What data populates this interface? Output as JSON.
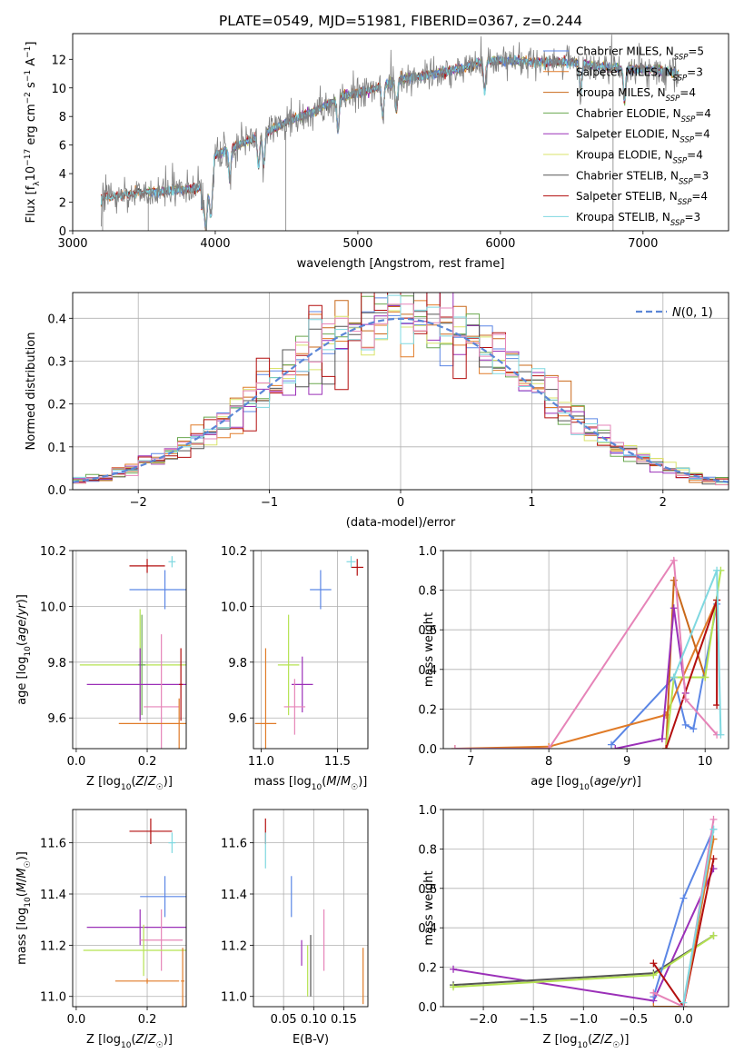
{
  "title": "PLATE=0549, MJD=51981, FIBERID=0367, z=0.244",
  "model_colors": {
    "Chabrier MILES": "#5b86e5",
    "Salpeter MILES": "#e07b28",
    "Kroupa MILES": "#c9691a",
    "Chabrier ELODIE": "#6aa84f",
    "Salpeter ELODIE": "#9b30b8",
    "Kroupa ELODIE": "#d9e36a",
    "Chabrier STELIB": "#555555",
    "Salpeter STELIB": "#b30f0f",
    "Kroupa STELIB": "#7fd8e0",
    "pink": "#e684b8",
    "lime": "#b5e352",
    "normal": "#5b86d6",
    "data": "#808080"
  },
  "chart_data": [
    {
      "id": "spectrum",
      "type": "line",
      "title": "PLATE=0549, MJD=51981, FIBERID=0367, z=0.244",
      "xlabel": "wavelength [Angstrom, rest frame]",
      "ylabel": "Flux [f_λ 10^-17 erg cm^-2 s^-1 A^-1]",
      "xlim": [
        3000,
        7600
      ],
      "ylim": [
        0,
        13.8
      ],
      "xticks": [
        3000,
        4000,
        5000,
        6000,
        7000
      ],
      "yticks": [
        0,
        2,
        4,
        6,
        8,
        10,
        12
      ],
      "legend_position": "right",
      "legend": [
        {
          "label": "Chabrier MILES, N",
          "sub": "SSP",
          "suffix": "=5",
          "model": "Chabrier MILES"
        },
        {
          "label": "Salpeter MILES, N",
          "sub": "SSP",
          "suffix": "=3",
          "model": "Salpeter MILES"
        },
        {
          "label": "Kroupa MILES, N",
          "sub": "SSP",
          "suffix": "=4",
          "model": "Kroupa MILES"
        },
        {
          "label": "Chabrier ELODIE, N",
          "sub": "SSP",
          "suffix": "=4",
          "model": "Chabrier ELODIE"
        },
        {
          "label": "Salpeter ELODIE, N",
          "sub": "SSP",
          "suffix": "=4",
          "model": "Salpeter ELODIE"
        },
        {
          "label": "Kroupa ELODIE, N",
          "sub": "SSP",
          "suffix": "=4",
          "model": "Kroupa ELODIE"
        },
        {
          "label": "Chabrier STELIB, N",
          "sub": "SSP",
          "suffix": "=3",
          "model": "Chabrier STELIB"
        },
        {
          "label": "Salpeter STELIB, N",
          "sub": "SSP",
          "suffix": "=4",
          "model": "Salpeter STELIB"
        },
        {
          "label": "Kroupa STELIB, N",
          "sub": "SSP",
          "suffix": "=3",
          "model": "Kroupa STELIB"
        }
      ],
      "continuum": [
        [
          3200,
          2.3
        ],
        [
          3500,
          2.7
        ],
        [
          3700,
          2.8
        ],
        [
          3900,
          3.0
        ],
        [
          4000,
          5.3
        ],
        [
          4300,
          6.6
        ],
        [
          4500,
          7.6
        ],
        [
          4700,
          8.4
        ],
        [
          4900,
          9.4
        ],
        [
          5100,
          9.9
        ],
        [
          5300,
          10.6
        ],
        [
          5500,
          10.9
        ],
        [
          5700,
          11.3
        ],
        [
          5900,
          11.9
        ],
        [
          6100,
          11.9
        ],
        [
          6300,
          11.8
        ],
        [
          6500,
          11.8
        ],
        [
          6700,
          11.5
        ],
        [
          6900,
          11.3
        ],
        [
          7100,
          11.3
        ],
        [
          7250,
          11.0
        ]
      ],
      "dips": [
        3934,
        3969,
        4102,
        4304,
        4340,
        4861,
        5175,
        5270,
        5890,
        6563,
        6870
      ],
      "gaps": [
        3460,
        3540,
        4500,
        6790
      ]
    },
    {
      "id": "residual_histogram",
      "type": "histogram",
      "xlabel": "(data-model)/error",
      "ylabel": "Normed distribution",
      "xlim": [
        -2.5,
        2.5
      ],
      "ylim": [
        0,
        0.46
      ],
      "xticks": [
        -2,
        -1,
        0,
        1,
        2
      ],
      "yticks": [
        0,
        0.1,
        0.2,
        0.3,
        0.4
      ],
      "legend_position": "upper right",
      "legend": [
        {
          "label": "N(0, 1)",
          "style": "dashed"
        }
      ],
      "bin_width": 0.1,
      "series_models": [
        "Chabrier MILES",
        "Salpeter MILES",
        "Kroupa MILES",
        "Chabrier ELODIE",
        "Salpeter ELODIE",
        "Kroupa ELODIE",
        "Chabrier STELIB",
        "Salpeter STELIB",
        "Kroupa STELIB",
        "pink"
      ]
    },
    {
      "id": "age_vs_Z",
      "type": "scatter",
      "xlabel": "Z [log10(Z/Z☉)]",
      "ylabel": "age [log10(age/yr)]",
      "xlim": [
        -0.01,
        0.31
      ],
      "ylim": [
        9.49,
        10.2
      ],
      "xticks": [
        0.0,
        0.2
      ],
      "yticks": [
        9.6,
        9.8,
        10.0,
        10.2
      ],
      "points": [
        {
          "model": "Salpeter STELIB",
          "x": 0.2,
          "y": 10.145,
          "xerr": 0.05,
          "yerr": 0.025
        },
        {
          "model": "Kroupa STELIB",
          "x": 0.27,
          "y": 10.16,
          "xerr": 0.01,
          "yerr": 0.02
        },
        {
          "model": "Chabrier MILES",
          "x": 0.25,
          "y": 10.06,
          "xerr": 0.1,
          "yerr": 0.07
        },
        {
          "model": "lime",
          "x": 0.18,
          "y": 9.79,
          "xerr": 0.17,
          "yerr": 0.2
        },
        {
          "model": "Chabrier ELODIE",
          "x": 0.185,
          "y": 9.79,
          "xerr": 0.01,
          "yerr": 0.18
        },
        {
          "model": "Salpeter ELODIE",
          "x": 0.18,
          "y": 9.72,
          "xerr": 0.15,
          "yerr": 0.13
        },
        {
          "model": "pink",
          "x": 0.24,
          "y": 9.64,
          "xerr": 0.05,
          "yerr": 0.26
        },
        {
          "model": "Salpeter MILES",
          "x": 0.29,
          "y": 9.58,
          "xerr": 0.17,
          "yerr": 0.09
        },
        {
          "model": "Salpeter STELIB",
          "x": 0.295,
          "y": 9.72,
          "xerr": 0.005,
          "yerr": 0.13
        }
      ]
    },
    {
      "id": "age_vs_mass",
      "type": "scatter",
      "xlabel": "mass [log10(M/M☉)]",
      "ylabel": "",
      "xlim": [
        10.95,
        11.7
      ],
      "ylim": [
        9.49,
        10.2
      ],
      "xticks": [
        11.0,
        11.5
      ],
      "yticks": [
        9.6,
        9.8,
        10.0,
        10.2
      ],
      "points": [
        {
          "model": "Salpeter STELIB",
          "x": 11.63,
          "y": 10.14,
          "xerr": 0.04,
          "yerr": 0.03
        },
        {
          "model": "Kroupa STELIB",
          "x": 11.59,
          "y": 10.16,
          "xerr": 0.03,
          "yerr": 0.02
        },
        {
          "model": "Chabrier MILES",
          "x": 11.39,
          "y": 10.06,
          "xerr": 0.07,
          "yerr": 0.07
        },
        {
          "model": "lime",
          "x": 11.18,
          "y": 9.79,
          "xerr": 0.07,
          "yerr": 0.18
        },
        {
          "model": "Salpeter ELODIE",
          "x": 11.27,
          "y": 9.72,
          "xerr": 0.07,
          "yerr": 0.1
        },
        {
          "model": "pink",
          "x": 11.22,
          "y": 9.64,
          "xerr": 0.07,
          "yerr": 0.1
        },
        {
          "model": "Salpeter MILES",
          "x": 11.03,
          "y": 9.58,
          "xerr": 0.07,
          "yerr": 0.27
        }
      ]
    },
    {
      "id": "weight_vs_age",
      "type": "line",
      "xlabel": "age [log10(age/yr)]",
      "ylabel": "mass weight",
      "xlim": [
        6.65,
        10.3
      ],
      "ylim": [
        0,
        1.0
      ],
      "xticks": [
        7,
        8,
        9,
        10
      ],
      "yticks": [
        0.0,
        0.2,
        0.4,
        0.6,
        0.8,
        1.0
      ],
      "series": [
        {
          "model": "Chabrier MILES",
          "x": [
            8.8,
            9.6,
            9.75,
            9.85,
            10.15
          ],
          "y": [
            0.02,
            0.36,
            0.12,
            0.1,
            0.73
          ]
        },
        {
          "model": "Salpeter MILES",
          "x": [
            6.8,
            8.0,
            9.5,
            10.15
          ],
          "y": [
            0.0,
            0.01,
            0.17,
            0.75
          ]
        },
        {
          "model": "Kroupa MILES",
          "x": [
            9.5,
            9.6,
            10.0
          ],
          "y": [
            0.0,
            0.85,
            0.36
          ]
        },
        {
          "model": "Salpeter ELODIE",
          "x": [
            8.85,
            9.45,
            9.6,
            9.75
          ],
          "y": [
            0.0,
            0.05,
            0.71,
            0.28
          ]
        },
        {
          "model": "lime",
          "x": [
            9.5,
            9.6,
            10.0,
            10.2
          ],
          "y": [
            0.0,
            0.36,
            0.36,
            0.9
          ]
        },
        {
          "model": "Salpeter STELIB",
          "x": [
            9.5,
            10.15,
            10.15
          ],
          "y": [
            0.0,
            0.75,
            0.22
          ]
        },
        {
          "model": "pink",
          "x": [
            6.8,
            8.0,
            9.6,
            9.75,
            10.15
          ],
          "y": [
            0.0,
            0.0,
            0.95,
            0.25,
            0.07
          ]
        },
        {
          "model": "Kroupa STELIB",
          "x": [
            9.6,
            10.15,
            10.2
          ],
          "y": [
            0.36,
            0.9,
            0.07
          ]
        }
      ]
    },
    {
      "id": "mass_vs_Z",
      "type": "scatter",
      "xlabel": "Z [log10(Z/Z☉)]",
      "ylabel": "mass [log10(M/M☉)]",
      "xlim": [
        -0.01,
        0.31
      ],
      "ylim": [
        10.96,
        11.73
      ],
      "xticks": [
        0.0,
        0.2
      ],
      "yticks": [
        11.0,
        11.2,
        11.4,
        11.6
      ],
      "points": [
        {
          "model": "Salpeter STELIB",
          "x": 0.21,
          "y": 11.645,
          "xerr": 0.06,
          "yerr": 0.05
        },
        {
          "model": "Kroupa STELIB",
          "x": 0.27,
          "y": 11.6,
          "xerr": 0.01,
          "yerr": 0.04
        },
        {
          "model": "Chabrier MILES",
          "x": 0.25,
          "y": 11.39,
          "xerr": 0.07,
          "yerr": 0.08
        },
        {
          "model": "Salpeter ELODIE",
          "x": 0.18,
          "y": 11.27,
          "xerr": 0.15,
          "yerr": 0.07
        },
        {
          "model": "pink",
          "x": 0.24,
          "y": 11.22,
          "xerr": 0.06,
          "yerr": 0.12
        },
        {
          "model": "lime",
          "x": 0.19,
          "y": 11.18,
          "xerr": 0.17,
          "yerr": 0.1
        },
        {
          "model": "Salpeter MILES",
          "x": 0.2,
          "y": 11.06,
          "xerr": 0.09,
          "yerr": 0.01
        },
        {
          "model": "Salpeter MILES",
          "x": 0.3,
          "y": 11.06,
          "xerr": 0.005,
          "yerr": 0.13
        }
      ]
    },
    {
      "id": "mass_vs_EBV",
      "type": "scatter",
      "xlabel": "E(B-V)",
      "ylabel": "",
      "xlim": [
        0.0,
        0.19
      ],
      "ylim": [
        10.96,
        11.73
      ],
      "xticks": [
        0.05,
        0.1,
        0.15
      ],
      "yticks": [
        11.0,
        11.2,
        11.4,
        11.6
      ],
      "points": [
        {
          "model": "Salpeter STELIB",
          "x": 0.02,
          "y": 11.645,
          "yerr": 0.05
        },
        {
          "model": "Kroupa STELIB",
          "x": 0.02,
          "y": 11.57,
          "yerr": 0.07
        },
        {
          "model": "Chabrier MILES",
          "x": 0.063,
          "y": 11.39,
          "yerr": 0.08
        },
        {
          "model": "Salpeter ELODIE",
          "x": 0.08,
          "y": 11.17,
          "yerr": 0.05
        },
        {
          "model": "pink",
          "x": 0.117,
          "y": 11.22,
          "yerr": 0.12
        },
        {
          "model": "lime",
          "x": 0.09,
          "y": 11.1,
          "yerr": 0.1
        },
        {
          "model": "Chabrier STELIB",
          "x": 0.095,
          "y": 11.12,
          "yerr": 0.12
        },
        {
          "model": "Salpeter MILES",
          "x": 0.182,
          "y": 11.08,
          "yerr": 0.11
        }
      ]
    },
    {
      "id": "weight_vs_Z",
      "type": "line",
      "xlabel": "Z [log10(Z/Z☉)]",
      "ylabel": "mass weight",
      "xlim": [
        -2.4,
        0.45
      ],
      "ylim": [
        0,
        1.0
      ],
      "xticks": [
        -2.0,
        -1.5,
        -1.0,
        -0.5,
        0.0
      ],
      "yticks": [
        0.0,
        0.2,
        0.4,
        0.6,
        0.8,
        1.0
      ],
      "series": [
        {
          "model": "Salpeter ELODIE",
          "x": [
            -2.3,
            -0.3,
            0.3
          ],
          "y": [
            0.19,
            0.03,
            0.7
          ]
        },
        {
          "model": "Chabrier STELIB",
          "x": [
            -2.3,
            -0.3,
            0.3
          ],
          "y": [
            0.11,
            0.17,
            0.36
          ]
        },
        {
          "model": "lime",
          "x": [
            -2.3,
            -0.3,
            0.3
          ],
          "y": [
            0.1,
            0.16,
            0.36
          ]
        },
        {
          "model": "Chabrier MILES",
          "x": [
            -0.3,
            0.0,
            0.3
          ],
          "y": [
            0.05,
            0.55,
            0.9
          ]
        },
        {
          "model": "Salpeter STELIB",
          "x": [
            -0.3,
            0.0,
            0.3
          ],
          "y": [
            0.22,
            0.0,
            0.75
          ]
        },
        {
          "model": "Salpeter MILES",
          "x": [
            -0.3,
            0.0,
            0.3
          ],
          "y": [
            0.0,
            0.0,
            0.85
          ]
        },
        {
          "model": "pink",
          "x": [
            -0.3,
            0.0,
            0.3
          ],
          "y": [
            0.07,
            0.0,
            0.95
          ]
        },
        {
          "model": "Kroupa STELIB",
          "x": [
            0.0,
            0.3
          ],
          "y": [
            0.02,
            0.9
          ]
        }
      ]
    }
  ]
}
